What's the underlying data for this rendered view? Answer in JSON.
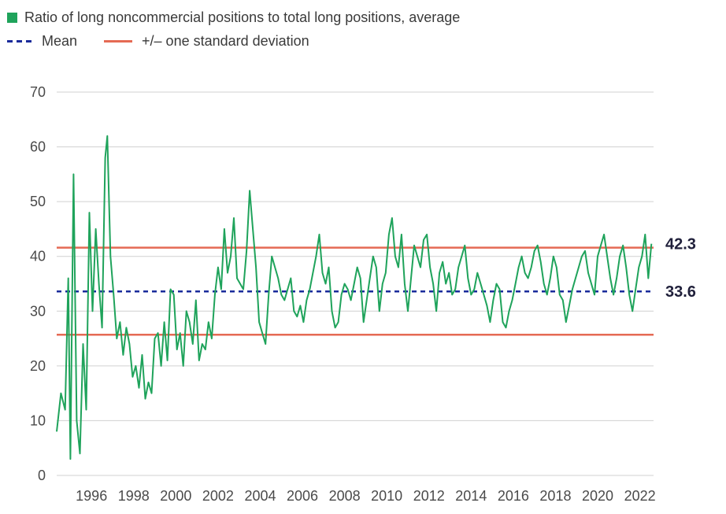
{
  "legend": {
    "series_label": "Ratio of long noncommercial positions to total long positions, average",
    "mean_label": "Mean",
    "std_label": "+/– one standard deviation"
  },
  "colors": {
    "series": "#1fa35b",
    "mean": "#1a2b9b",
    "std": "#e56a54",
    "grid": "#d0d0d0"
  },
  "chart_data": {
    "type": "line",
    "ylim": [
      0,
      70
    ],
    "xlim": [
      1994.6,
      2022.9
    ],
    "y_ticks": [
      0,
      10,
      20,
      30,
      40,
      50,
      60,
      70
    ],
    "x_ticks": [
      "1996",
      "1998",
      "2000",
      "2002",
      "2004",
      "2006",
      "2008",
      "2010",
      "2012",
      "2014",
      "2016",
      "2018",
      "2020",
      "2022"
    ],
    "grid": true,
    "mean": 33.6,
    "std_band": [
      25.7,
      41.6
    ],
    "annotations": [
      "42.3",
      "33.6"
    ],
    "series": [
      {
        "name": "Ratio of long noncommercial positions to total long positions, average",
        "x": [
          1994.6,
          1994.8,
          1995.0,
          1995.15,
          1995.25,
          1995.4,
          1995.55,
          1995.7,
          1995.85,
          1996.0,
          1996.15,
          1996.3,
          1996.45,
          1996.6,
          1996.75,
          1996.9,
          1997.0,
          1997.15,
          1997.3,
          1997.45,
          1997.6,
          1997.75,
          1997.9,
          1998.05,
          1998.2,
          1998.35,
          1998.5,
          1998.65,
          1998.8,
          1998.95,
          1999.1,
          1999.25,
          1999.4,
          1999.55,
          1999.7,
          1999.85,
          2000.0,
          2000.15,
          2000.3,
          2000.45,
          2000.6,
          2000.75,
          2000.9,
          2001.05,
          2001.2,
          2001.35,
          2001.5,
          2001.65,
          2001.8,
          2001.95,
          2002.1,
          2002.25,
          2002.4,
          2002.55,
          2002.7,
          2002.85,
          2003.0,
          2003.15,
          2003.3,
          2003.45,
          2003.6,
          2003.75,
          2003.9,
          2004.05,
          2004.2,
          2004.35,
          2004.5,
          2004.65,
          2004.8,
          2004.95,
          2005.1,
          2005.25,
          2005.4,
          2005.55,
          2005.7,
          2005.85,
          2006.0,
          2006.15,
          2006.3,
          2006.45,
          2006.6,
          2006.75,
          2006.9,
          2007.05,
          2007.2,
          2007.35,
          2007.5,
          2007.65,
          2007.8,
          2007.95,
          2008.1,
          2008.25,
          2008.4,
          2008.55,
          2008.7,
          2008.85,
          2009.0,
          2009.15,
          2009.3,
          2009.45,
          2009.6,
          2009.75,
          2009.9,
          2010.05,
          2010.2,
          2010.35,
          2010.5,
          2010.65,
          2010.8,
          2010.95,
          2011.1,
          2011.25,
          2011.4,
          2011.55,
          2011.7,
          2011.85,
          2012.0,
          2012.15,
          2012.3,
          2012.45,
          2012.6,
          2012.75,
          2012.9,
          2013.05,
          2013.2,
          2013.35,
          2013.5,
          2013.65,
          2013.8,
          2013.95,
          2014.1,
          2014.25,
          2014.4,
          2014.55,
          2014.7,
          2014.85,
          2015.0,
          2015.15,
          2015.3,
          2015.45,
          2015.6,
          2015.75,
          2015.9,
          2016.05,
          2016.2,
          2016.35,
          2016.5,
          2016.65,
          2016.8,
          2016.95,
          2017.1,
          2017.25,
          2017.4,
          2017.55,
          2017.7,
          2017.85,
          2018.0,
          2018.15,
          2018.3,
          2018.45,
          2018.6,
          2018.75,
          2018.9,
          2019.05,
          2019.2,
          2019.35,
          2019.5,
          2019.65,
          2019.8,
          2019.95,
          2020.1,
          2020.25,
          2020.4,
          2020.55,
          2020.7,
          2020.85,
          2021.0,
          2021.15,
          2021.3,
          2021.45,
          2021.6,
          2021.75,
          2021.9,
          2022.05,
          2022.2,
          2022.35,
          2022.5,
          2022.65,
          2022.8
        ],
        "values": [
          8,
          15,
          12,
          36,
          3,
          55,
          10,
          4,
          24,
          12,
          48,
          30,
          45,
          35,
          27,
          58,
          62,
          40,
          33,
          25,
          28,
          22,
          27,
          24,
          18,
          20,
          16,
          22,
          14,
          17,
          15,
          25,
          26,
          20,
          28,
          21,
          34,
          33,
          23,
          26,
          20,
          30,
          28,
          24,
          32,
          21,
          24,
          23,
          28,
          25,
          33,
          38,
          34,
          45,
          37,
          40,
          47,
          36,
          35,
          34,
          41,
          52,
          45,
          38,
          28,
          26,
          24,
          33,
          40,
          38,
          36,
          33,
          32,
          34,
          36,
          30,
          29,
          31,
          28,
          32,
          34,
          37,
          40,
          44,
          37,
          35,
          38,
          30,
          27,
          28,
          33,
          35,
          34,
          32,
          35,
          38,
          36,
          28,
          32,
          36,
          40,
          38,
          30,
          35,
          37,
          44,
          47,
          40,
          38,
          44,
          35,
          30,
          36,
          42,
          40,
          38,
          43,
          44,
          38,
          35,
          30,
          37,
          39,
          35,
          37,
          33,
          34,
          38,
          40,
          42,
          36,
          33,
          34,
          37,
          35,
          33,
          31,
          28,
          32,
          35,
          34,
          28,
          27,
          30,
          32,
          35,
          38,
          40,
          37,
          36,
          38,
          41,
          42,
          39,
          35,
          33,
          36,
          40,
          38,
          33,
          32,
          28,
          31,
          34,
          36,
          38,
          40,
          41,
          37,
          35,
          33,
          40,
          42,
          44,
          40,
          36,
          33,
          36,
          40,
          42,
          38,
          33,
          30,
          34,
          38,
          40,
          44,
          36,
          42.3
        ]
      }
    ]
  }
}
